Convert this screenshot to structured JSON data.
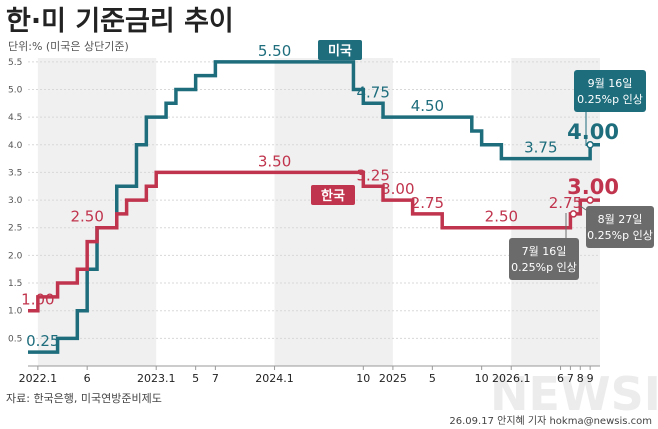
{
  "title": "한·미 기준금리 추이",
  "subtitle": "단위:% (미국은 상단기준)",
  "source": "자료: 한국은행, 미국연방준비제도",
  "credit": "26.09.17 안지혜 기자 hokma@newsis.com",
  "watermark": "NEWSIS",
  "colors": {
    "us": "#1e6d7d",
    "kr": "#c0344d",
    "note": "#6b6b6b",
    "band": "#f0f0f0"
  },
  "callouts": {
    "us_sep": {
      "date": "9월 16일",
      "text": "0.25%p 인상"
    },
    "kr_jul": {
      "date": "7월 16일",
      "text": "0.25%p 인상"
    },
    "kr_aug": {
      "date": "8월 27일",
      "text": "0.25%p 인상"
    }
  },
  "chart_data": {
    "type": "line",
    "step": true,
    "ylim": [
      0,
      5.75
    ],
    "yticks": [
      "0.5",
      "1.0",
      "1.5",
      "2.0",
      "2.5",
      "3.0",
      "3.5",
      "4.0",
      "4.5",
      "5.0",
      "5.5"
    ],
    "xlim": [
      0,
      58
    ],
    "xticks": [
      {
        "m": 1,
        "label": "2022.1"
      },
      {
        "m": 6,
        "label": "6"
      },
      {
        "m": 13,
        "label": "2023.1"
      },
      {
        "m": 17,
        "label": "5"
      },
      {
        "m": 19,
        "label": "7"
      },
      {
        "m": 25,
        "label": "2024.1"
      },
      {
        "m": 34,
        "label": "10"
      },
      {
        "m": 37,
        "label": "2025"
      },
      {
        "m": 41,
        "label": "5"
      },
      {
        "m": 46,
        "label": "10"
      },
      {
        "m": 49,
        "label": "2026.1"
      },
      {
        "m": 54,
        "label": "6"
      },
      {
        "m": 55,
        "label": "7"
      },
      {
        "m": 56,
        "label": "8"
      },
      {
        "m": 57,
        "label": "9"
      }
    ],
    "bands": [
      [
        1,
        13
      ],
      [
        25,
        37
      ],
      [
        49,
        58
      ]
    ],
    "series": [
      {
        "name": "미국",
        "key": "us",
        "points": [
          [
            0,
            0.25
          ],
          [
            3,
            0.5
          ],
          [
            5,
            1.0
          ],
          [
            6,
            1.75
          ],
          [
            7,
            2.5
          ],
          [
            9,
            3.25
          ],
          [
            11,
            4.0
          ],
          [
            12,
            4.5
          ],
          [
            14,
            4.75
          ],
          [
            15,
            5.0
          ],
          [
            17,
            5.25
          ],
          [
            19,
            5.5
          ],
          [
            33,
            5.0
          ],
          [
            34,
            4.75
          ],
          [
            36,
            4.5
          ],
          [
            45,
            4.25
          ],
          [
            46,
            4.0
          ],
          [
            48,
            3.75
          ],
          [
            57,
            4.0
          ],
          [
            58,
            4.0
          ]
        ],
        "labels": [
          {
            "m": 1.5,
            "v": 0.25,
            "text": "0.25"
          },
          {
            "m": 25,
            "v": 5.5,
            "text": "5.50"
          },
          {
            "m": 35,
            "v": 4.75,
            "text": "4.75"
          },
          {
            "m": 40.5,
            "v": 4.5,
            "text": "4.50"
          },
          {
            "m": 52,
            "v": 3.75,
            "text": "3.75"
          },
          {
            "m": 57.3,
            "v": 4.0,
            "text": "4.00",
            "big": true
          }
        ]
      },
      {
        "name": "한국",
        "key": "kr",
        "points": [
          [
            0,
            1.0
          ],
          [
            1,
            1.25
          ],
          [
            3,
            1.5
          ],
          [
            5,
            1.75
          ],
          [
            6,
            2.25
          ],
          [
            7,
            2.5
          ],
          [
            9,
            2.75
          ],
          [
            10,
            3.0
          ],
          [
            12,
            3.25
          ],
          [
            13,
            3.5
          ],
          [
            34,
            3.25
          ],
          [
            36,
            3.0
          ],
          [
            39,
            2.75
          ],
          [
            42,
            2.5
          ],
          [
            54,
            2.5
          ],
          [
            55,
            2.75
          ],
          [
            56,
            3.0
          ],
          [
            58,
            3.0
          ]
        ],
        "labels": [
          {
            "m": 1.0,
            "v": 1.0,
            "text": "1.00"
          },
          {
            "m": 6.0,
            "v": 2.5,
            "text": "2.50"
          },
          {
            "m": 25,
            "v": 3.5,
            "text": "3.50"
          },
          {
            "m": 35,
            "v": 3.25,
            "text": "3.25"
          },
          {
            "m": 37.5,
            "v": 3.0,
            "text": "3.00"
          },
          {
            "m": 40.5,
            "v": 2.75,
            "text": "2.75"
          },
          {
            "m": 48,
            "v": 2.5,
            "text": "2.50"
          },
          {
            "m": 54.5,
            "v": 2.75,
            "text": "2.75"
          },
          {
            "m": 57.3,
            "v": 3.0,
            "text": "3.00",
            "big": true
          }
        ]
      }
    ]
  }
}
